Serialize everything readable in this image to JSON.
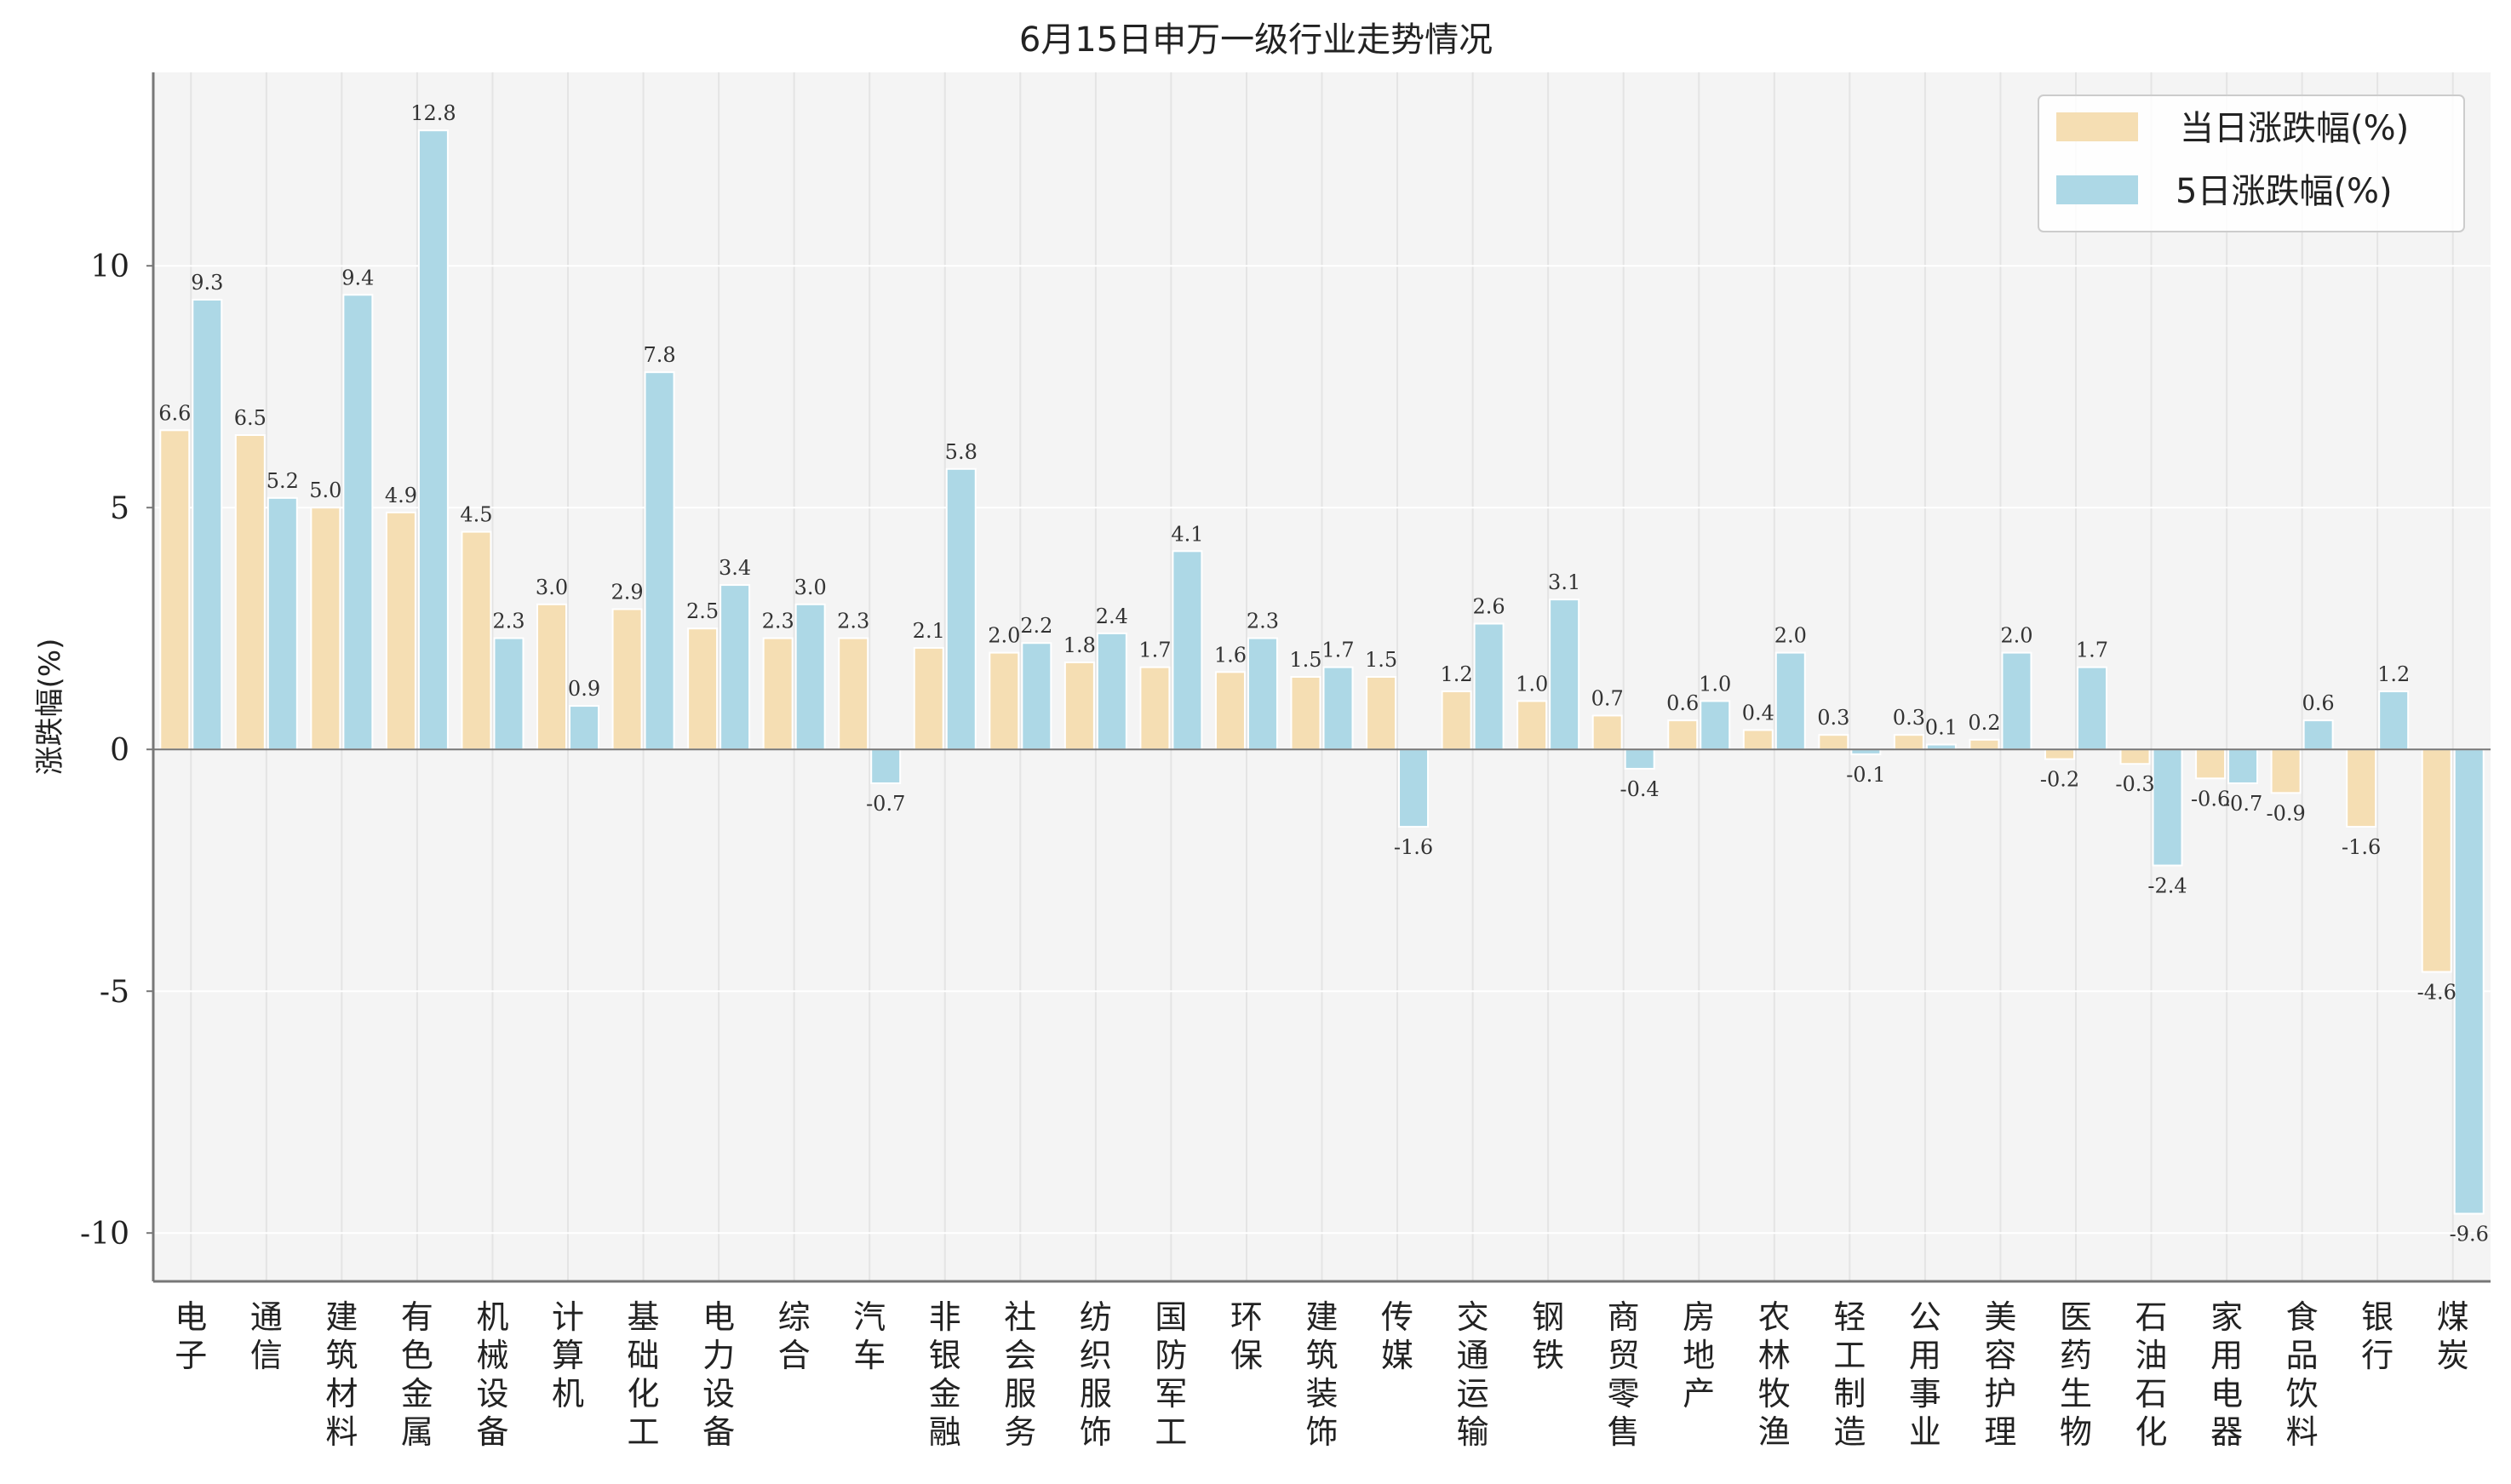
{
  "colors": {
    "daily": "#f5deb3",
    "five_day": "#add8e6",
    "plot_bg": "#f4f4f4",
    "grid": "#ffffff",
    "zero_line": "#777777",
    "axis": "#777777"
  },
  "chart_data": {
    "type": "bar",
    "title": "6月15日申万一级行业走势情况",
    "xlabel": "",
    "ylabel": "涨跌幅(%)",
    "ylim": [
      -11,
      14
    ],
    "yticks": [
      10,
      5,
      0,
      -5,
      -10
    ],
    "grid": true,
    "legend_position": "top-right",
    "categories": [
      "电子",
      "通信",
      "建筑材料",
      "有色金属",
      "机械设备",
      "计算机",
      "基础化工",
      "电力设备",
      "综合",
      "汽车",
      "非银金融",
      "社会服务",
      "纺织服饰",
      "国防军工",
      "环保",
      "建筑装饰",
      "传媒",
      "交通运输",
      "钢铁",
      "商贸零售",
      "房地产",
      "农林牧渔",
      "轻工制造",
      "公用事业",
      "美容护理",
      "医药生物",
      "石油石化",
      "家用电器",
      "食品饮料",
      "银行",
      "煤炭"
    ],
    "series": [
      {
        "name": "当日涨跌幅(%)",
        "values": [
          6.6,
          6.5,
          5.0,
          4.9,
          4.5,
          3.0,
          2.9,
          2.5,
          2.3,
          2.3,
          2.1,
          2.0,
          1.8,
          1.7,
          1.6,
          1.5,
          1.5,
          1.2,
          1.0,
          0.7,
          0.6,
          0.4,
          0.3,
          0.3,
          0.2,
          -0.2,
          -0.3,
          -0.6,
          -0.9,
          -1.6,
          -4.6
        ],
        "labels": [
          "6.6",
          "6.5",
          "5.0",
          "4.9",
          "4.5",
          "3.0",
          "2.9",
          "2.5",
          "2.3",
          "2.3",
          "2.1",
          "2.0",
          "1.8",
          "1.7",
          "1.6",
          "1.5",
          "1.5",
          "1.2",
          "1.0",
          "0.7",
          "0.6",
          "0.4",
          "0.3",
          "0.3",
          "0.2",
          "-0.2",
          "-0.3",
          "-0.6",
          "-0.9",
          "-1.6",
          "-4.6"
        ]
      },
      {
        "name": "5日涨跌幅(%)",
        "values": [
          9.3,
          5.2,
          9.4,
          12.8,
          2.3,
          0.9,
          7.8,
          3.4,
          3.0,
          -0.7,
          5.8,
          2.2,
          2.4,
          4.1,
          2.3,
          1.7,
          -1.6,
          2.6,
          3.1,
          -0.4,
          1.0,
          2.0,
          -0.1,
          0.1,
          2.0,
          1.7,
          -2.4,
          -0.7,
          0.6,
          1.2,
          -9.6
        ],
        "labels": [
          "9.3",
          "5.2",
          "9.4",
          "12.8",
          "2.3",
          "0.9",
          "7.8",
          "3.4",
          "3.0",
          "-0.7",
          "5.8",
          "2.2",
          "2.4",
          "4.1",
          "2.3",
          "1.7",
          "-1.6",
          "2.6",
          "3.1",
          "-0.4",
          "1.0",
          "2.0",
          "-0.1",
          "0.1",
          "2.0",
          "1.7",
          "-2.4",
          "-0.7",
          "0.6",
          "1.2",
          "-9.6"
        ]
      }
    ]
  }
}
